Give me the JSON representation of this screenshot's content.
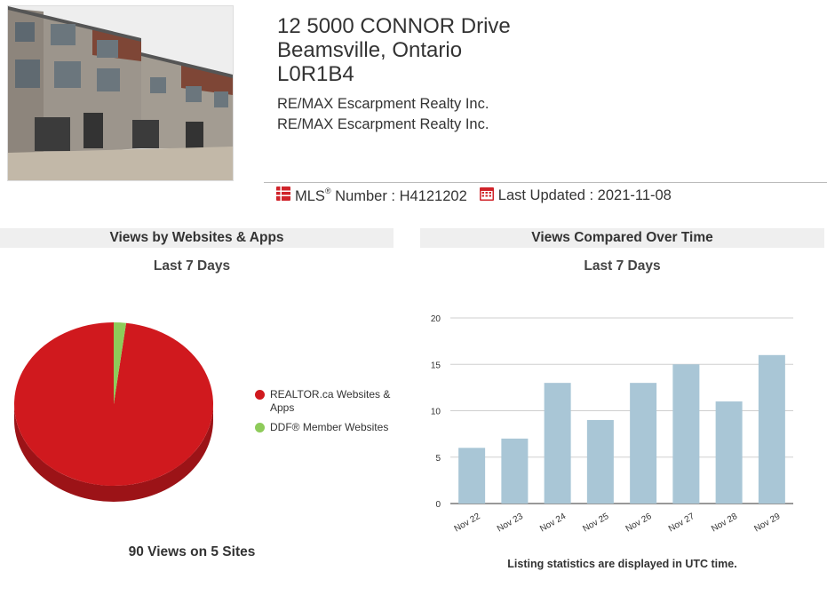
{
  "listing": {
    "address_line1": "12 5000 CONNOR Drive",
    "address_line2": "Beamsville, Ontario",
    "postal_code": "L0R1B4",
    "broker1": "RE/MAX Escarpment Realty Inc.",
    "broker2": "RE/MAX Escarpment Realty Inc.",
    "mls_label": "MLS",
    "mls_reg": "®",
    "mls_number_label": " Number : H4121202",
    "last_updated": "Last Updated : 2021-11-08",
    "icons": [
      "mls-grid-icon",
      "calendar-icon"
    ],
    "accent_color": "#d0232a"
  },
  "panels": {
    "left_title": "Views by Websites & Apps",
    "left_subtitle": "Last 7 Days",
    "right_title": "Views Compared Over Time",
    "right_subtitle": "Last 7 Days",
    "total_views": "90 Views on 5 Sites",
    "utc_note": "Listing statistics are displayed in UTC time."
  },
  "legend": [
    {
      "label": "REALTOR.ca Websites & Apps",
      "color": "#d0191e"
    },
    {
      "label": "DDF® Member Websites",
      "color": "#8ecb5a"
    }
  ],
  "chart_data": [
    {
      "type": "pie",
      "title": "",
      "slices": [
        {
          "name": "REALTOR.ca Websites & Apps",
          "value": 98,
          "color": "#d0191e"
        },
        {
          "name": "DDF® Member Websites",
          "value": 2,
          "color": "#8ecb5a"
        }
      ]
    },
    {
      "type": "bar",
      "title": "",
      "categories": [
        "Nov 22",
        "Nov 23",
        "Nov 24",
        "Nov 25",
        "Nov 26",
        "Nov 27",
        "Nov 28",
        "Nov 29"
      ],
      "values": [
        6,
        7,
        13,
        9,
        13,
        15,
        11,
        16
      ],
      "ylim": [
        0,
        20
      ],
      "yticks": [
        0,
        5,
        10,
        15,
        20
      ],
      "grid": true,
      "bar_color": "#a9c6d6"
    }
  ]
}
